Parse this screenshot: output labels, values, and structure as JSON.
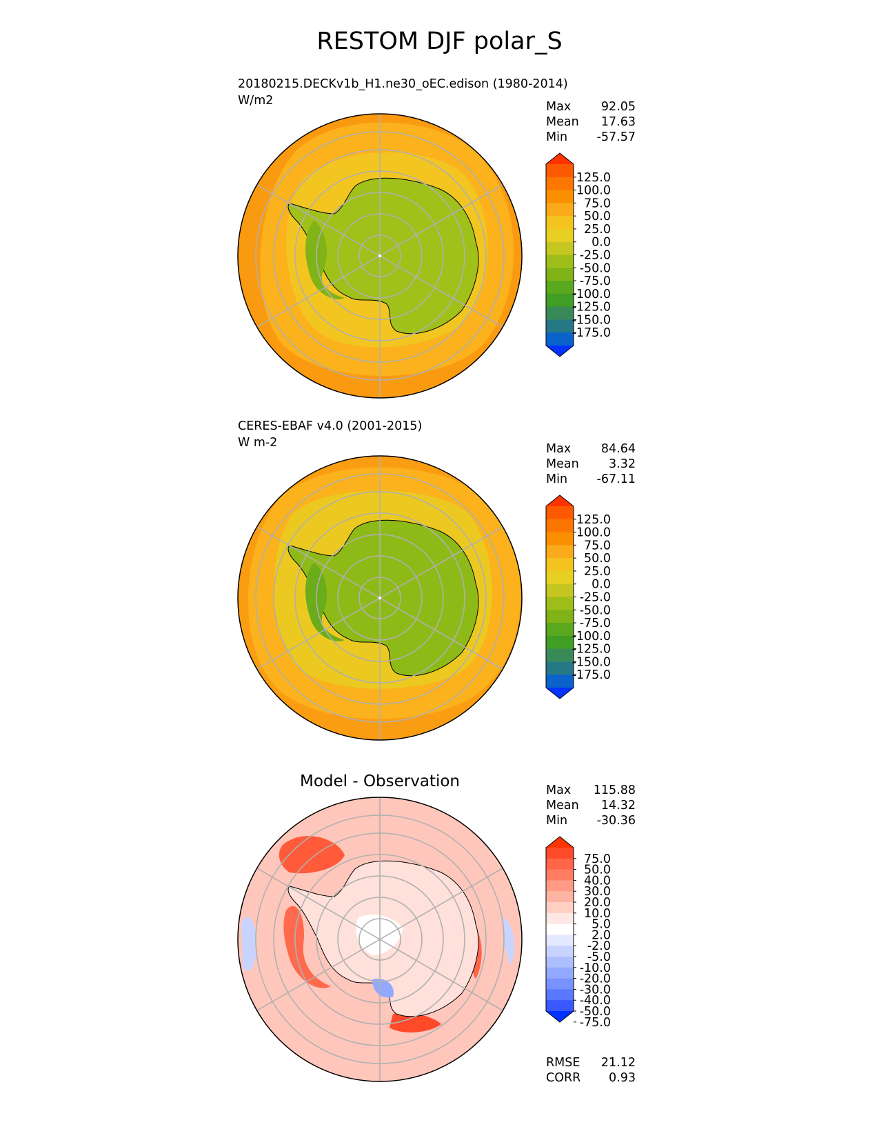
{
  "title": "RESTOM DJF polar_S",
  "panels": [
    {
      "id": "model",
      "name": "20180215.DECKv1b_H1.ne30_oEC.edison (1980-2014)",
      "units": "W/m2",
      "stats": [
        {
          "label": "Max",
          "value": "92.05"
        },
        {
          "label": "Mean",
          "value": "17.63"
        },
        {
          "label": "Min",
          "value": "-57.57"
        }
      ]
    },
    {
      "id": "obs",
      "name": "CERES-EBAF v4.0 (2001-2015)",
      "units": "W m-2",
      "stats": [
        {
          "label": "Max",
          "value": "84.64"
        },
        {
          "label": "Mean",
          "value": "3.32"
        },
        {
          "label": "Min",
          "value": "-67.11"
        }
      ]
    },
    {
      "id": "diff",
      "heading": "Model - Observation",
      "stats": [
        {
          "label": "Max",
          "value": "115.88"
        },
        {
          "label": "Mean",
          "value": "14.32"
        },
        {
          "label": "Min",
          "value": "-30.36"
        }
      ],
      "metrics": [
        {
          "label": "RMSE",
          "value": "21.12"
        },
        {
          "label": "CORR",
          "value": "0.93"
        }
      ]
    }
  ],
  "colorbars": {
    "main": {
      "ticks": [
        "125.0",
        "100.0",
        "75.0",
        "50.0",
        "25.0",
        "0.0",
        "-25.0",
        "-50.0",
        "-75.0",
        "-100.0",
        "-125.0",
        "-150.0",
        "-175.0"
      ],
      "colors": [
        "#ff3300",
        "#fd5a00",
        "#fc7600",
        "#fa8f00",
        "#fbaa1a",
        "#f5c31f",
        "#e7d023",
        "#c5c61f",
        "#9fbe19",
        "#7fb317",
        "#5aa81e",
        "#3f9e23",
        "#3a8a59",
        "#257985",
        "#0a62cb",
        "#0033ff"
      ]
    },
    "diff": {
      "ticks": [
        "75.0",
        "50.0",
        "40.0",
        "30.0",
        "20.0",
        "10.0",
        "5.0",
        "2.0",
        "-2.0",
        "-5.0",
        "-10.0",
        "-20.0",
        "-30.0",
        "-40.0",
        "-50.0",
        "-75.0"
      ],
      "colors": [
        "#ff3300",
        "#ff4a2a",
        "#ff6548",
        "#ff7c63",
        "#ff9a85",
        "#ffb3a3",
        "#ffcfc4",
        "#ffe8e3",
        "#ffffff",
        "#e3e9ff",
        "#c8d4ff",
        "#aebfff",
        "#93a9ff",
        "#7893ff",
        "#5a78ff",
        "#3a58ff",
        "#0033ff"
      ]
    }
  },
  "chart_data": [
    {
      "type": "heatmap",
      "projection": "south-polar-stereographic",
      "title": "20180215.DECKv1b_H1.ne30_oEC.edison (1980-2014)",
      "units": "W/m2",
      "max": 92.05,
      "mean": 17.63,
      "min": -57.57,
      "colorbar_ticks": [
        125,
        100,
        75,
        50,
        25,
        0,
        -25,
        -50,
        -75,
        -100,
        -125,
        -150,
        -175
      ],
      "grid": true
    },
    {
      "type": "heatmap",
      "projection": "south-polar-stereographic",
      "title": "CERES-EBAF v4.0 (2001-2015)",
      "units": "W m-2",
      "max": 84.64,
      "mean": 3.32,
      "min": -67.11,
      "colorbar_ticks": [
        125,
        100,
        75,
        50,
        25,
        0,
        -25,
        -50,
        -75,
        -100,
        -125,
        -150,
        -175
      ],
      "grid": true
    },
    {
      "type": "heatmap",
      "projection": "south-polar-stereographic",
      "title": "Model - Observation",
      "max": 115.88,
      "mean": 14.32,
      "min": -30.36,
      "rmse": 21.12,
      "corr": 0.93,
      "colorbar_ticks": [
        75,
        50,
        40,
        30,
        20,
        10,
        5,
        2,
        -2,
        -5,
        -10,
        -20,
        -30,
        -40,
        -50,
        -75
      ],
      "grid": true
    }
  ]
}
